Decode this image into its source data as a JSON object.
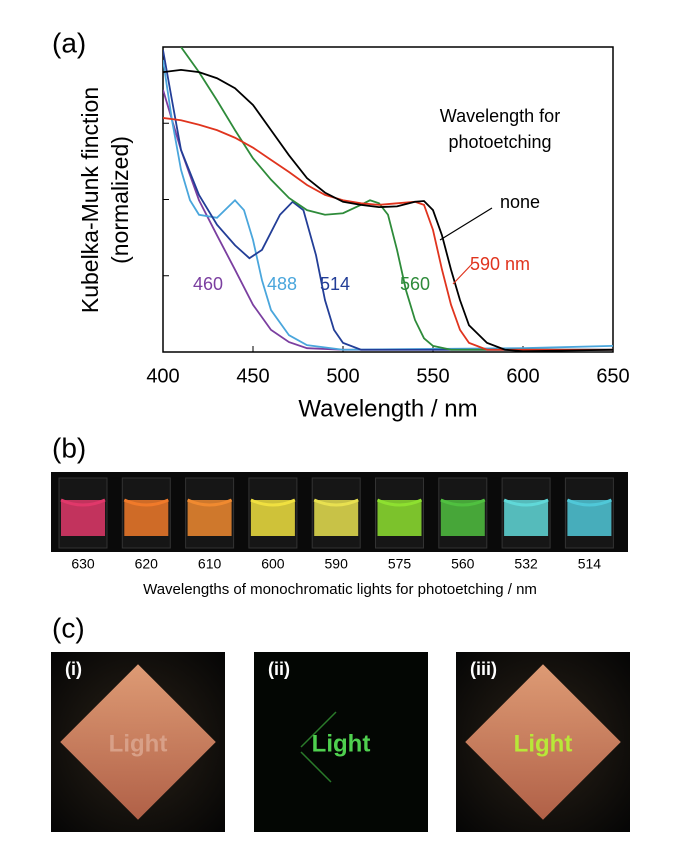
{
  "chart_data": {
    "type": "line",
    "panel_label": "(a)",
    "xlabel": "Wavelength  /  nm",
    "ylabel": [
      "Kubelka-Munk finction",
      "(normalized)"
    ],
    "legend_title": [
      "Wavelength for",
      "photoetching"
    ],
    "xlim": [
      400,
      650
    ],
    "xticks": [
      400,
      450,
      500,
      550,
      600,
      650
    ],
    "ylim": [
      0,
      4
    ],
    "yticks": [
      1,
      2,
      3
    ],
    "series": [
      {
        "name": "460",
        "color": "#7b3fa0",
        "x": [
          400,
          410,
          420,
          430,
          440,
          450,
          460,
          470,
          480,
          500,
          650
        ],
        "values": [
          3.44,
          2.65,
          1.99,
          1.53,
          1.08,
          0.62,
          0.29,
          0.13,
          0.05,
          0.03,
          0.03
        ]
      },
      {
        "name": "488",
        "color": "#4aa6dc",
        "x": [
          400,
          405,
          410,
          415,
          420,
          430,
          440,
          445,
          450,
          455,
          460,
          470,
          480,
          500,
          600,
          650
        ],
        "values": [
          3.83,
          3.04,
          2.39,
          1.99,
          1.8,
          1.76,
          1.99,
          1.86,
          1.47,
          0.94,
          0.55,
          0.22,
          0.09,
          0.03,
          0.05,
          0.08
        ]
      },
      {
        "name": "514",
        "color": "#233e97",
        "x": [
          400,
          405,
          410,
          420,
          430,
          440,
          448,
          455,
          465,
          472,
          478,
          485,
          490,
          495,
          500,
          510,
          650
        ],
        "values": [
          3.96,
          3.3,
          2.65,
          2.06,
          1.67,
          1.4,
          1.23,
          1.34,
          1.8,
          1.97,
          1.86,
          1.27,
          0.68,
          0.29,
          0.12,
          0.03,
          0.03
        ]
      },
      {
        "name": "560",
        "color": "#2e8b3a",
        "x": [
          410,
          420,
          430,
          440,
          450,
          460,
          470,
          480,
          490,
          500,
          510,
          515,
          520,
          525,
          530,
          535,
          540,
          545,
          550,
          560,
          650
        ],
        "values": [
          4.0,
          3.67,
          3.3,
          2.91,
          2.54,
          2.26,
          2.02,
          1.86,
          1.8,
          1.82,
          1.93,
          1.99,
          1.95,
          1.8,
          1.34,
          0.81,
          0.42,
          0.18,
          0.08,
          0.03,
          0.03
        ]
      },
      {
        "name": "590 nm",
        "color": "#e0341e",
        "x": [
          400,
          410,
          420,
          430,
          440,
          450,
          460,
          470,
          480,
          490,
          500,
          510,
          520,
          530,
          540,
          545,
          550,
          555,
          560,
          565,
          570,
          580,
          650
        ],
        "values": [
          3.07,
          3.04,
          2.98,
          2.91,
          2.81,
          2.68,
          2.52,
          2.36,
          2.19,
          2.06,
          1.99,
          1.95,
          1.93,
          1.95,
          1.97,
          1.93,
          1.6,
          1.08,
          0.62,
          0.29,
          0.12,
          0.03,
          0.03
        ]
      },
      {
        "name": "none",
        "color": "#000000",
        "x": [
          400,
          410,
          420,
          430,
          440,
          450,
          460,
          470,
          480,
          490,
          500,
          510,
          520,
          530,
          540,
          545,
          550,
          555,
          560,
          565,
          570,
          580,
          590,
          600,
          650
        ],
        "values": [
          3.67,
          3.7,
          3.67,
          3.59,
          3.46,
          3.24,
          2.91,
          2.58,
          2.28,
          2.09,
          1.97,
          1.93,
          1.9,
          1.91,
          1.97,
          1.98,
          1.86,
          1.53,
          1.08,
          0.68,
          0.35,
          0.12,
          0.03,
          0.01,
          0.03
        ]
      }
    ]
  },
  "panel_b": {
    "label": "(b)",
    "wavelengths": [
      630,
      620,
      610,
      600,
      590,
      575,
      560,
      532,
      514
    ],
    "caption": "Wavelengths of monochromatic lights for photoetching / nm"
  },
  "panel_c": {
    "label": "(c)",
    "photos": [
      {
        "label": "(i)",
        "text": "Light"
      },
      {
        "label": "(ii)",
        "text": "Light"
      },
      {
        "label": "(iii)",
        "text": "Light"
      }
    ]
  }
}
